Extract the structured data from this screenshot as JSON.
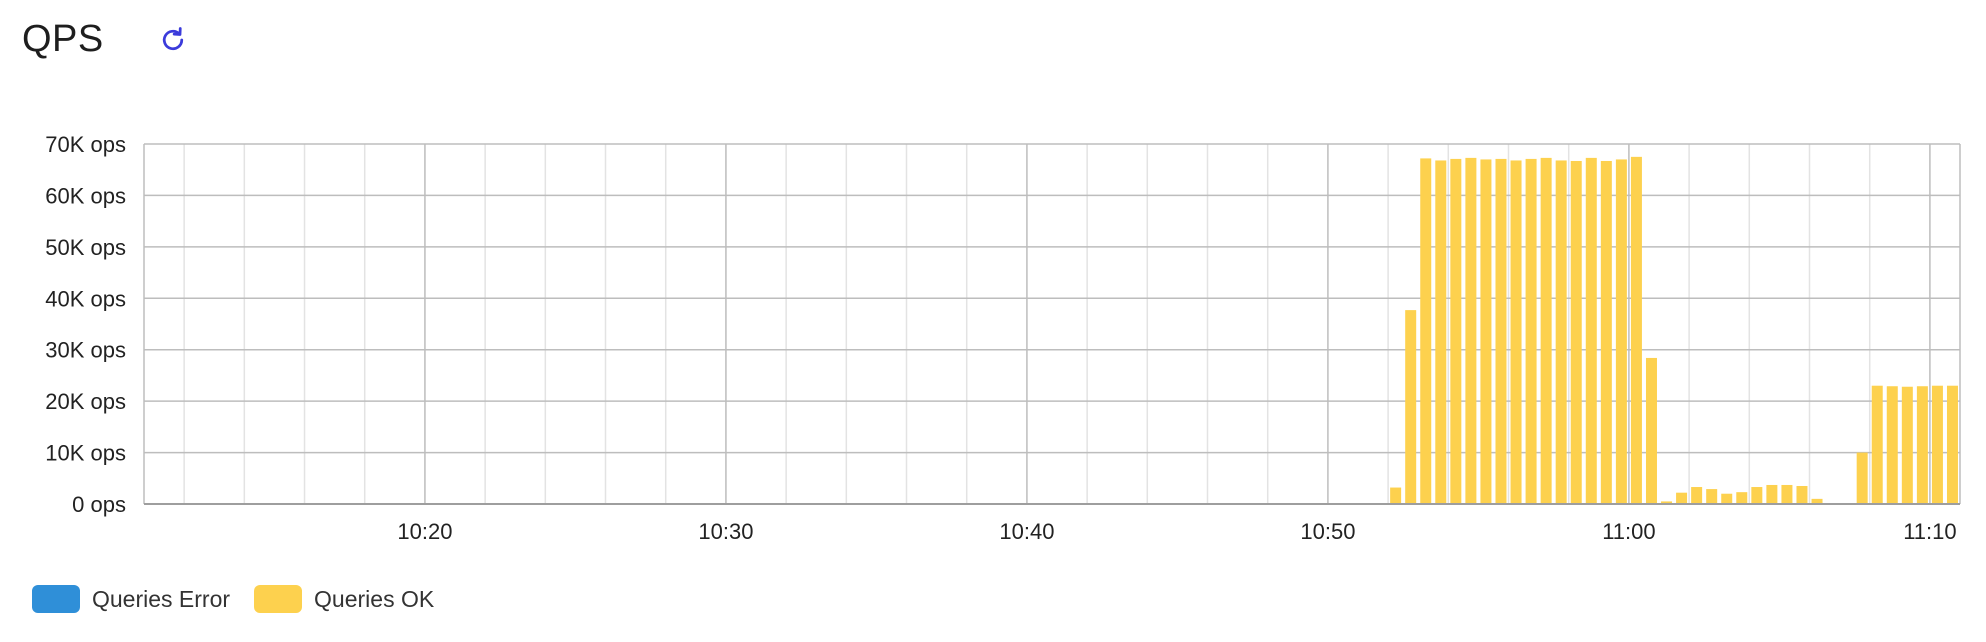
{
  "panel": {
    "title": "QPS",
    "refresh_icon": "refresh-icon",
    "colors": {
      "accent": "#3b3bdb",
      "queries_error": "#2f8fd8",
      "queries_ok": "#fdd14e",
      "grid_major": "#bdbdbd",
      "grid_minor": "#e3e3e3"
    }
  },
  "legend": {
    "items": [
      {
        "label": "Queries Error",
        "color": "#2f8fd8"
      },
      {
        "label": "Queries OK",
        "color": "#fdd14e"
      }
    ]
  },
  "chart_data": {
    "type": "bar",
    "stacked": true,
    "title": "QPS",
    "xlabel": "",
    "ylabel": "",
    "grid": true,
    "legend_position": "bottom-left",
    "x_range": [
      "10:10:40",
      "11:11:00"
    ],
    "x_ticks": [
      "10:20",
      "10:30",
      "10:40",
      "10:50",
      "11:00",
      "11:10"
    ],
    "ylim": [
      0,
      70000
    ],
    "y_ticks": [
      {
        "value": 0,
        "label": "0 ops"
      },
      {
        "value": 10000,
        "label": "10K ops"
      },
      {
        "value": 20000,
        "label": "20K ops"
      },
      {
        "value": 30000,
        "label": "30K ops"
      },
      {
        "value": 40000,
        "label": "40K ops"
      },
      {
        "value": 50000,
        "label": "50K ops"
      },
      {
        "value": 60000,
        "label": "60K ops"
      },
      {
        "value": 70000,
        "label": "70K ops"
      }
    ],
    "series": [
      {
        "name": "Queries Error",
        "color": "#2f8fd8",
        "points": []
      },
      {
        "name": "Queries OK",
        "color": "#fdd14e",
        "points": [
          {
            "x": "10:52:15",
            "y": 3200
          },
          {
            "x": "10:52:45",
            "y": 37700
          },
          {
            "x": "10:53:15",
            "y": 67200
          },
          {
            "x": "10:53:45",
            "y": 66800
          },
          {
            "x": "10:54:15",
            "y": 67100
          },
          {
            "x": "10:54:45",
            "y": 67300
          },
          {
            "x": "10:55:15",
            "y": 67000
          },
          {
            "x": "10:55:45",
            "y": 67100
          },
          {
            "x": "10:56:15",
            "y": 66800
          },
          {
            "x": "10:56:45",
            "y": 67100
          },
          {
            "x": "10:57:15",
            "y": 67300
          },
          {
            "x": "10:57:45",
            "y": 66800
          },
          {
            "x": "10:58:15",
            "y": 66700
          },
          {
            "x": "10:58:45",
            "y": 67300
          },
          {
            "x": "10:59:15",
            "y": 66700
          },
          {
            "x": "10:59:45",
            "y": 67000
          },
          {
            "x": "11:00:15",
            "y": 67500
          },
          {
            "x": "11:00:45",
            "y": 28400
          },
          {
            "x": "11:01:15",
            "y": 500
          },
          {
            "x": "11:01:45",
            "y": 2200
          },
          {
            "x": "11:02:15",
            "y": 3300
          },
          {
            "x": "11:02:45",
            "y": 2900
          },
          {
            "x": "11:03:15",
            "y": 2000
          },
          {
            "x": "11:03:45",
            "y": 2300
          },
          {
            "x": "11:04:15",
            "y": 3300
          },
          {
            "x": "11:04:45",
            "y": 3700
          },
          {
            "x": "11:05:15",
            "y": 3700
          },
          {
            "x": "11:05:45",
            "y": 3500
          },
          {
            "x": "11:06:15",
            "y": 1000
          },
          {
            "x": "11:07:45",
            "y": 10000
          },
          {
            "x": "11:08:15",
            "y": 23000
          },
          {
            "x": "11:08:45",
            "y": 22900
          },
          {
            "x": "11:09:15",
            "y": 22800
          },
          {
            "x": "11:09:45",
            "y": 22900
          },
          {
            "x": "11:10:15",
            "y": 23000
          },
          {
            "x": "11:10:45",
            "y": 23000
          }
        ]
      }
    ]
  }
}
